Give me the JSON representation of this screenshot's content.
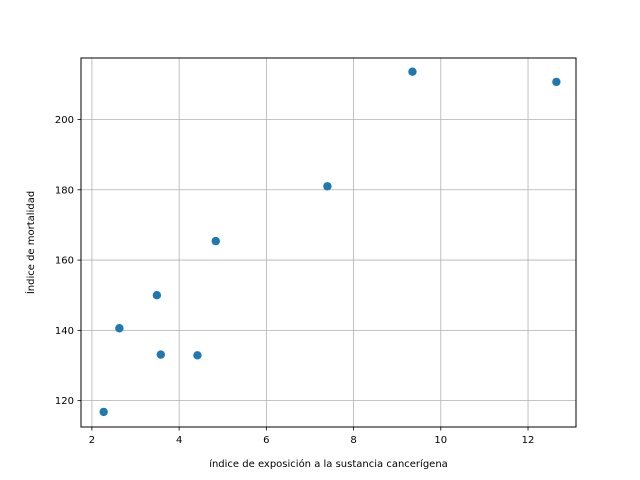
{
  "chart_data": {
    "type": "scatter",
    "title": "",
    "xlabel": "índice de exposición a la sustancia cancerígena",
    "ylabel": "Índice de mortalidad",
    "xlim": [
      1.75,
      13.1
    ],
    "ylim": [
      112.5,
      217.5
    ],
    "xticks": [
      2,
      4,
      6,
      8,
      10,
      12
    ],
    "yticks": [
      120,
      140,
      160,
      180,
      200
    ],
    "grid": true,
    "legend": "none",
    "marker_color": "#1f77b4",
    "series": [
      {
        "x": [
          2.27,
          2.63,
          3.49,
          3.58,
          4.42,
          4.84,
          7.4,
          9.35,
          12.65
        ],
        "y": [
          116.8,
          140.6,
          150.0,
          133.1,
          132.9,
          165.4,
          181.0,
          213.6,
          210.7
        ]
      }
    ]
  }
}
